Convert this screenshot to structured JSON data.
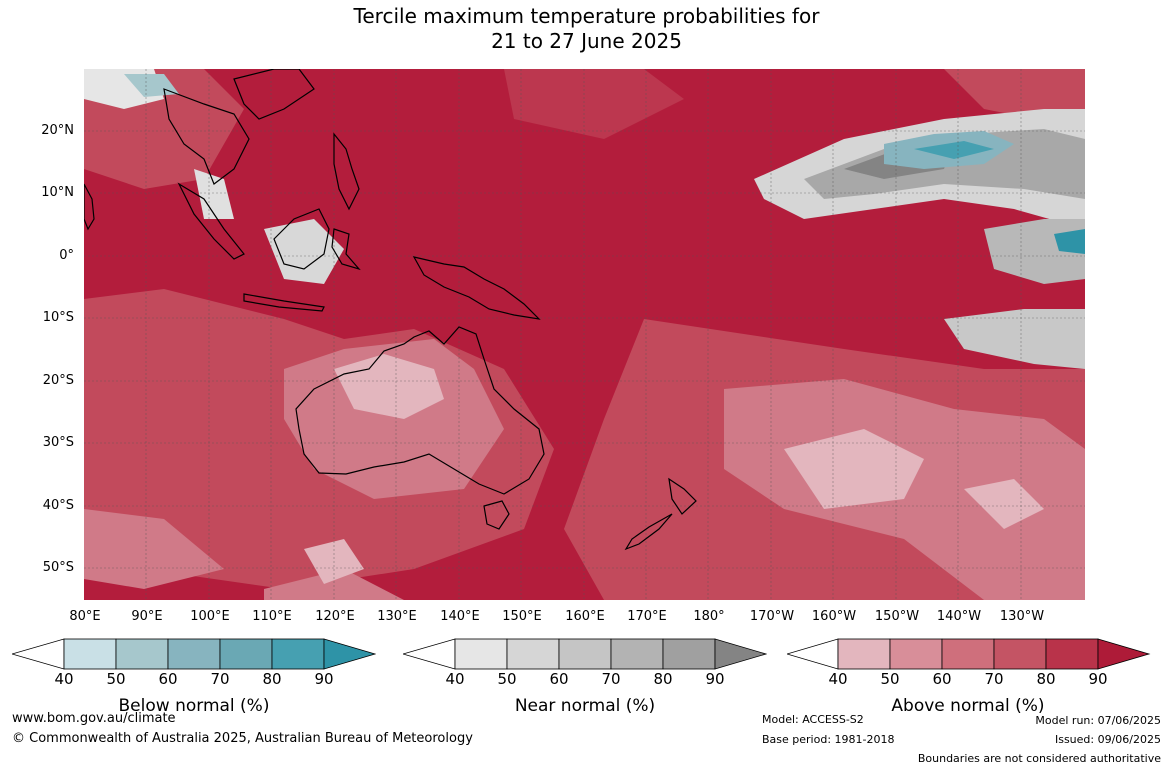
{
  "title": {
    "line1": "Tercile maximum temperature probabilities for",
    "line2": "21 to 27 June 2025"
  },
  "latitude_labels": [
    "20°N",
    "10°N",
    "0°",
    "10°S",
    "20°S",
    "30°S",
    "40°S",
    "50°S"
  ],
  "longitude_labels": [
    "80°E",
    "90°E",
    "100°E",
    "110°E",
    "120°E",
    "130°E",
    "140°E",
    "150°E",
    "160°E",
    "170°E",
    "180°",
    "170°W",
    "160°W",
    "150°W",
    "140°W",
    "130°W"
  ],
  "colorbars": [
    {
      "title": "Below normal (%)",
      "ticks": [
        "40",
        "50",
        "60",
        "70",
        "80",
        "90"
      ],
      "colors": [
        "#c9e0e6",
        "#a6c7cc",
        "#87b4bf",
        "#6aa8b4",
        "#46a0b1",
        "#2e93a7"
      ]
    },
    {
      "title": "Near normal (%)",
      "ticks": [
        "40",
        "50",
        "60",
        "70",
        "80",
        "90"
      ],
      "colors": [
        "#e6e6e6",
        "#d6d6d6",
        "#c5c5c5",
        "#b3b3b3",
        "#a0a0a0",
        "#848484"
      ]
    },
    {
      "title": "Above normal (%)",
      "ticks": [
        "40",
        "50",
        "60",
        "70",
        "80",
        "90"
      ],
      "colors": [
        "#e3b6be",
        "#d88e99",
        "#cf6f7c",
        "#c45464",
        "#b9334a",
        "#ae1b38"
      ]
    }
  ],
  "footer": {
    "website": "www.bom.gov.au/climate",
    "copyright": "© Commonwealth of Australia 2025, Australian Bureau of Meteorology",
    "model": "Model: ACCESS-S2",
    "base_period": "Base period: 1981-2018",
    "model_run": "Model run: 07/06/2025",
    "issued": "Issued: 09/06/2025",
    "disclaimer": "Boundaries are not considered authoritative"
  }
}
